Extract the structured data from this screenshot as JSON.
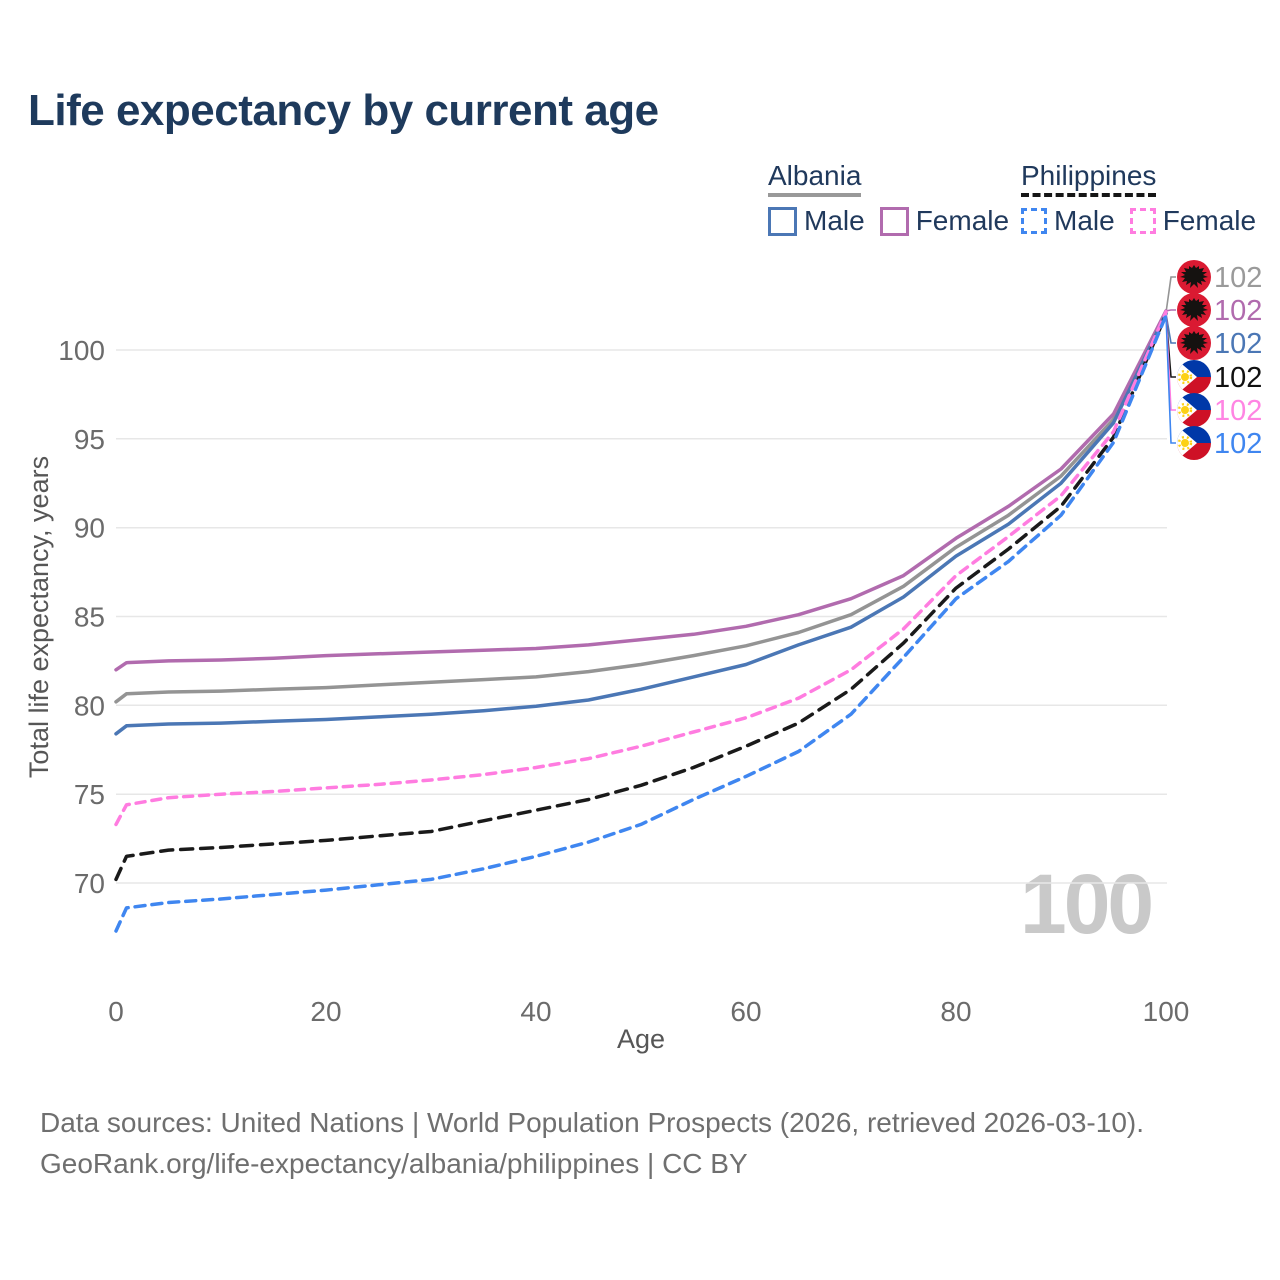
{
  "title": "Life expectancy by current age",
  "watermark": "100",
  "legend": {
    "groups": [
      {
        "label": "Albania",
        "line_style": "solid",
        "line_color": "#999999",
        "items": [
          {
            "label": "Male",
            "color": "#4b77b5",
            "dashed": false
          },
          {
            "label": "Female",
            "color": "#b16bae",
            "dashed": false
          }
        ]
      },
      {
        "label": "Philippines",
        "line_style": "dashed",
        "line_color": "#161616",
        "items": [
          {
            "label": "Male",
            "color": "#3f86f0",
            "dashed": true
          },
          {
            "label": "Female",
            "color": "#ff7ce0",
            "dashed": true
          }
        ]
      }
    ]
  },
  "chart_data": {
    "type": "line",
    "title": "Life expectancy by current age",
    "xlabel": "Age",
    "ylabel": "Total life expectancy, years",
    "xlim": [
      0,
      100
    ],
    "ylim": [
      66,
      103
    ],
    "xticks": [
      0,
      20,
      40,
      60,
      80,
      100
    ],
    "yticks": [
      70,
      75,
      80,
      85,
      90,
      95,
      100
    ],
    "grid": "horizontal",
    "legend_position": "top-right",
    "x": [
      0,
      1,
      5,
      10,
      15,
      20,
      25,
      30,
      35,
      40,
      45,
      50,
      55,
      60,
      65,
      70,
      75,
      80,
      85,
      90,
      95,
      100
    ],
    "series": [
      {
        "id": "albania-both",
        "country": "Albania",
        "group": "Both sexes",
        "color": "#949494",
        "dash": null,
        "flag": "albania",
        "end_label": "102",
        "label_color": "#9a9a9a",
        "values": [
          80.2,
          80.65,
          80.75,
          80.8,
          80.9,
          81.0,
          81.15,
          81.3,
          81.45,
          81.6,
          81.9,
          82.3,
          82.8,
          83.35,
          84.1,
          85.1,
          86.7,
          88.9,
          90.7,
          92.9,
          96.1,
          102.1
        ]
      },
      {
        "id": "albania-female",
        "country": "Albania",
        "group": "Female",
        "color": "#b16bae",
        "dash": null,
        "flag": "albania",
        "end_label": "102",
        "label_color": "#b16bae",
        "values": [
          82.0,
          82.4,
          82.5,
          82.55,
          82.65,
          82.8,
          82.9,
          83.0,
          83.1,
          83.2,
          83.4,
          83.7,
          84.0,
          84.45,
          85.1,
          86.0,
          87.3,
          89.4,
          91.2,
          93.3,
          96.4,
          102.2
        ]
      },
      {
        "id": "albania-male",
        "country": "Albania",
        "group": "Male",
        "color": "#4b77b5",
        "dash": null,
        "flag": "albania",
        "end_label": "102",
        "label_color": "#4b77b5",
        "values": [
          78.4,
          78.85,
          78.95,
          79.0,
          79.1,
          79.2,
          79.35,
          79.5,
          79.7,
          79.95,
          80.3,
          80.9,
          81.6,
          82.3,
          83.4,
          84.4,
          86.1,
          88.4,
          90.2,
          92.5,
          95.9,
          102.05
        ]
      },
      {
        "id": "philippines-both",
        "country": "Philippines",
        "group": "Both sexes",
        "color": "#1a1a1a",
        "dash": "12 8",
        "flag": "philippines",
        "end_label": "102",
        "label_color": "#111111",
        "values": [
          70.2,
          71.5,
          71.85,
          72.0,
          72.2,
          72.4,
          72.65,
          72.9,
          73.5,
          74.1,
          74.7,
          75.5,
          76.5,
          77.7,
          79.0,
          80.9,
          83.5,
          86.6,
          88.8,
          91.2,
          95.1,
          102.0
        ]
      },
      {
        "id": "philippines-female",
        "country": "Philippines",
        "group": "Female",
        "color": "#ff7ce0",
        "dash": "9 7",
        "flag": "philippines",
        "end_label": "102",
        "label_color": "#ff85e3",
        "values": [
          73.3,
          74.4,
          74.8,
          75.0,
          75.15,
          75.35,
          75.55,
          75.8,
          76.1,
          76.5,
          77.0,
          77.7,
          78.5,
          79.3,
          80.4,
          82.0,
          84.3,
          87.3,
          89.5,
          91.8,
          95.4,
          102.15
        ]
      },
      {
        "id": "philippines-male",
        "country": "Philippines",
        "group": "Male",
        "color": "#3f86f0",
        "dash": "10 7",
        "flag": "philippines",
        "end_label": "102",
        "label_color": "#3f86f0",
        "values": [
          67.3,
          68.6,
          68.9,
          69.1,
          69.35,
          69.6,
          69.9,
          70.2,
          70.8,
          71.5,
          72.3,
          73.3,
          74.7,
          76.0,
          77.4,
          79.5,
          82.7,
          86.0,
          88.1,
          90.7,
          94.8,
          101.95
        ]
      }
    ]
  },
  "footer": {
    "line1": "Data sources: United Nations | World Population Prospects (2026, retrieved 2026-03-10).",
    "line2": "GeoRank.org/life-expectancy/albania/philippines | CC BY"
  }
}
